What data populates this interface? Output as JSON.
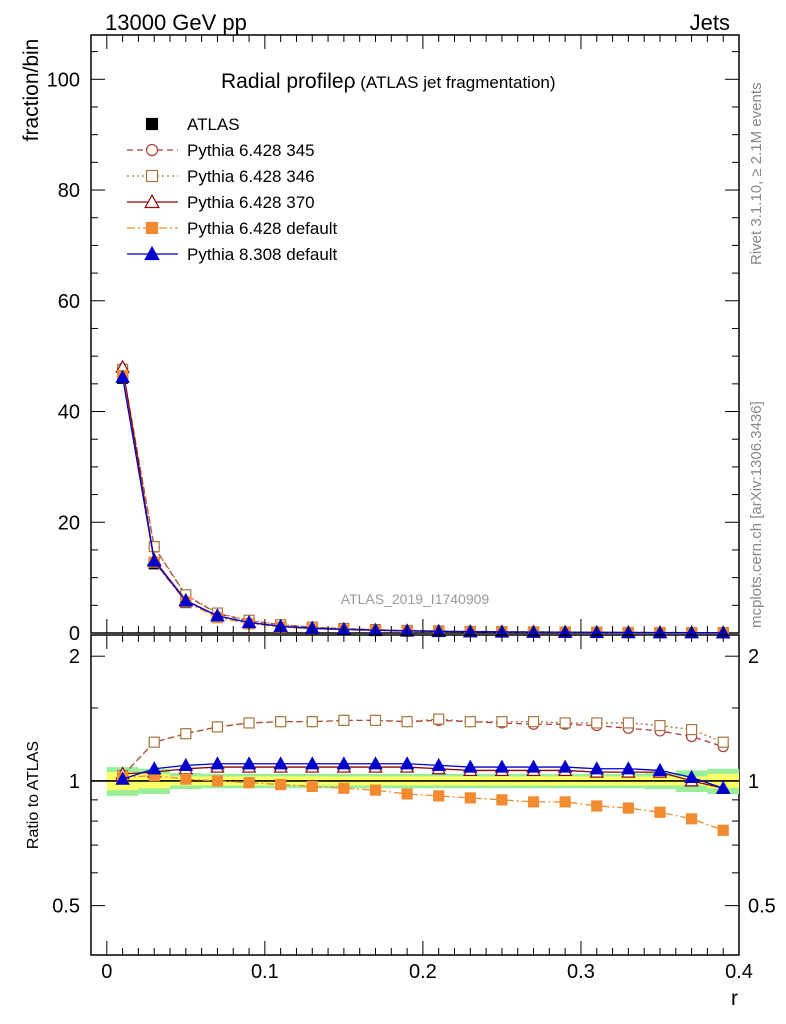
{
  "header": {
    "left": "13000 GeV pp",
    "right": "Jets"
  },
  "side_labels": {
    "rivet": "Rivet 3.1.10, ≥ 2.1M events",
    "mcplots": "mcplots.cern.ch [arXiv:1306.3436]"
  },
  "chart_data": [
    {
      "type": "line",
      "panel": "main",
      "title": "Radial profileρ (ATLAS jet fragmentation)",
      "title_main": "Radial profile",
      "title_rho": "ρ",
      "title_sub": " (ATLAS jet fragmentation)",
      "watermark": "ATLAS_2019_I1740909",
      "ylabel": "fraction/bin",
      "xlim": [
        -0.01,
        0.4
      ],
      "ylim": [
        0,
        108
      ],
      "yticks": [
        0,
        20,
        40,
        60,
        80,
        100
      ],
      "legend_position": "top-left",
      "x": [
        0.01,
        0.03,
        0.05,
        0.07,
        0.09,
        0.11,
        0.13,
        0.15,
        0.17,
        0.19,
        0.21,
        0.23,
        0.25,
        0.27,
        0.29,
        0.31,
        0.33,
        0.35,
        0.37,
        0.39
      ],
      "series": [
        {
          "name": "ATLAS",
          "color": "#000000",
          "marker": "square-filled",
          "values": [
            46.0,
            12.5,
            5.5,
            2.8,
            1.7,
            1.1,
            0.8,
            0.6,
            0.45,
            0.35,
            0.28,
            0.22,
            0.18,
            0.15,
            0.12,
            0.1,
            0.08,
            0.07,
            0.06,
            0.05
          ]
        },
        {
          "name": "Pythia 6.428 345",
          "color": "#b03a3a",
          "marker": "circle-open",
          "dash": "6,4",
          "values": [
            47.8,
            15.5,
            6.8,
            3.5,
            2.2,
            1.5,
            1.05,
            0.8,
            0.6,
            0.45,
            0.37,
            0.29,
            0.24,
            0.2,
            0.15,
            0.13,
            0.1,
            0.09,
            0.07,
            0.06
          ]
        },
        {
          "name": "Pythia 6.428 346",
          "color": "#a8763e",
          "marker": "square-open",
          "dash": "2,3",
          "values": [
            47.6,
            15.6,
            6.9,
            3.6,
            2.3,
            1.5,
            1.06,
            0.81,
            0.61,
            0.46,
            0.38,
            0.29,
            0.24,
            0.2,
            0.16,
            0.13,
            0.1,
            0.09,
            0.07,
            0.06
          ]
        },
        {
          "name": "Pythia 6.428 370",
          "color": "#8b0000",
          "marker": "triangle-open",
          "dash": "",
          "values": [
            48.0,
            13.2,
            5.9,
            3.1,
            1.9,
            1.2,
            0.85,
            0.65,
            0.49,
            0.38,
            0.3,
            0.23,
            0.19,
            0.16,
            0.13,
            0.11,
            0.09,
            0.07,
            0.06,
            0.05
          ]
        },
        {
          "name": "Pythia 6.428 default",
          "color": "#f28a30",
          "marker": "square-filled",
          "dash": "8,3,2,3",
          "values": [
            46.5,
            12.8,
            5.6,
            2.8,
            1.7,
            1.08,
            0.76,
            0.58,
            0.43,
            0.32,
            0.26,
            0.2,
            0.16,
            0.13,
            0.11,
            0.09,
            0.07,
            0.06,
            0.05,
            0.04
          ]
        },
        {
          "name": "Pythia 8.308 default",
          "color": "#0000cc",
          "marker": "triangle-filled",
          "dash": "",
          "values": [
            46.2,
            13.0,
            5.8,
            3.1,
            1.9,
            1.2,
            0.85,
            0.65,
            0.49,
            0.38,
            0.3,
            0.23,
            0.19,
            0.16,
            0.13,
            0.11,
            0.09,
            0.07,
            0.06,
            0.05
          ]
        }
      ]
    },
    {
      "type": "line",
      "panel": "ratio",
      "ylabel": "Ratio to ATLAS",
      "xlabel": "r",
      "xlim": [
        -0.01,
        0.4
      ],
      "ylim": [
        0.38,
        2.25
      ],
      "yticks": [
        0.5,
        1,
        2
      ],
      "ytick_labels": [
        "0.5",
        "1",
        "2"
      ],
      "xticks": [
        0,
        0.1,
        0.2,
        0.3,
        0.4
      ],
      "xtick_labels": [
        "0",
        "0.1",
        "0.2",
        "0.3",
        "0.4"
      ],
      "x": [
        0.01,
        0.03,
        0.05,
        0.07,
        0.09,
        0.11,
        0.13,
        0.15,
        0.17,
        0.19,
        0.21,
        0.23,
        0.25,
        0.27,
        0.29,
        0.31,
        0.33,
        0.35,
        0.37,
        0.39
      ],
      "band_inner": [
        0.05,
        0.04,
        0.025,
        0.025,
        0.025,
        0.025,
        0.025,
        0.025,
        0.025,
        0.025,
        0.025,
        0.025,
        0.025,
        0.025,
        0.025,
        0.025,
        0.025,
        0.025,
        0.025,
        0.04
      ],
      "band_outer": [
        0.08,
        0.07,
        0.045,
        0.04,
        0.04,
        0.04,
        0.04,
        0.04,
        0.04,
        0.04,
        0.04,
        0.04,
        0.04,
        0.04,
        0.04,
        0.04,
        0.04,
        0.045,
        0.06,
        0.07
      ],
      "band_colors": {
        "inner": "#ffff66",
        "outer": "#99ee99"
      },
      "series": [
        {
          "name": "Pythia 6.428 345",
          "color": "#b03a3a",
          "marker": "circle-open",
          "dash": "6,4",
          "values": [
            1.03,
            1.24,
            1.3,
            1.35,
            1.38,
            1.39,
            1.39,
            1.4,
            1.4,
            1.39,
            1.4,
            1.39,
            1.38,
            1.37,
            1.37,
            1.36,
            1.34,
            1.32,
            1.28,
            1.21
          ]
        },
        {
          "name": "Pythia 6.428 346",
          "color": "#a8763e",
          "marker": "square-open",
          "dash": "2,3",
          "values": [
            1.03,
            1.24,
            1.3,
            1.35,
            1.38,
            1.39,
            1.39,
            1.4,
            1.4,
            1.39,
            1.41,
            1.39,
            1.39,
            1.39,
            1.38,
            1.38,
            1.38,
            1.36,
            1.33,
            1.24
          ]
        },
        {
          "name": "Pythia 6.428 370",
          "color": "#8b0000",
          "marker": "triangle-open",
          "dash": "",
          "values": [
            1.04,
            1.05,
            1.07,
            1.08,
            1.08,
            1.08,
            1.08,
            1.08,
            1.08,
            1.08,
            1.07,
            1.06,
            1.06,
            1.06,
            1.06,
            1.05,
            1.05,
            1.05,
            1.0,
            0.96
          ]
        },
        {
          "name": "Pythia 6.428 default",
          "color": "#f28a30",
          "marker": "square-filled",
          "dash": "8,3,2,3",
          "values": [
            1.02,
            1.03,
            1.01,
            1.0,
            0.99,
            0.98,
            0.97,
            0.96,
            0.95,
            0.93,
            0.92,
            0.91,
            0.9,
            0.89,
            0.89,
            0.87,
            0.86,
            0.84,
            0.81,
            0.76
          ]
        },
        {
          "name": "Pythia 8.308 default",
          "color": "#0000cc",
          "marker": "triangle-filled",
          "dash": "",
          "values": [
            1.01,
            1.07,
            1.09,
            1.1,
            1.1,
            1.1,
            1.1,
            1.1,
            1.1,
            1.1,
            1.09,
            1.08,
            1.08,
            1.08,
            1.08,
            1.07,
            1.07,
            1.06,
            1.02,
            0.96
          ]
        }
      ]
    }
  ]
}
